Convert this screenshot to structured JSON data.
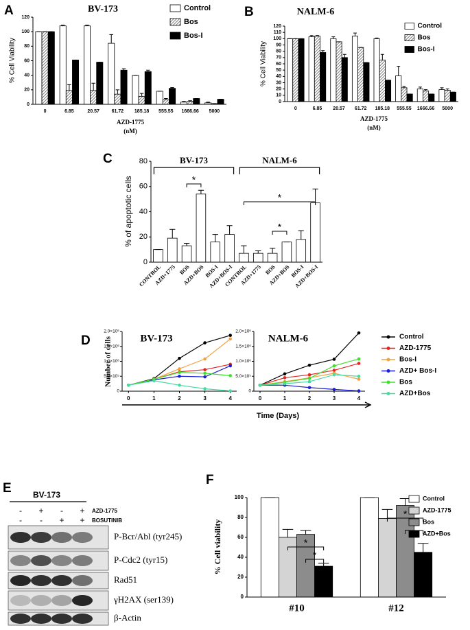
{
  "chart_data": [
    {
      "panel": "A",
      "type": "bar",
      "title": "BV-173",
      "y_label": "% Cell Viability",
      "x_label": "AZD-1775",
      "x_unit": "(nM)",
      "categories": [
        "0",
        "6.85",
        "20.57",
        "61.72",
        "185.18",
        "555.55",
        "1666.66",
        "5000"
      ],
      "series": [
        {
          "name": "Control",
          "color": "#ffffff",
          "values": [
            100,
            108,
            108,
            84,
            40,
            18,
            3,
            2
          ],
          "errors": [
            0,
            1,
            1,
            12,
            0,
            0,
            1,
            1
          ]
        },
        {
          "name": "Bos",
          "color": "#444444",
          "pattern": "hatch",
          "values": [
            100,
            19,
            19,
            14,
            11,
            6,
            4,
            1
          ],
          "errors": [
            0,
            8,
            10,
            6,
            4,
            2,
            1,
            0
          ]
        },
        {
          "name": "Bos-I",
          "color": "#000000",
          "values": [
            100,
            61,
            58,
            47,
            45,
            22,
            8,
            7
          ],
          "errors": [
            0,
            0,
            0,
            2,
            2,
            1,
            0,
            0
          ]
        }
      ],
      "ylim": [
        0,
        120
      ],
      "yticks": [
        0,
        20,
        40,
        60,
        80,
        100,
        120
      ]
    },
    {
      "panel": "B",
      "type": "bar",
      "title": "NALM-6",
      "y_label": "% Cell Viability",
      "x_label": "AZD-1775",
      "x_unit": "(nM)",
      "categories": [
        "0",
        "6.85",
        "20.57",
        "61.72",
        "185.18",
        "555.55",
        "1666.66",
        "5000"
      ],
      "series": [
        {
          "name": "Control",
          "color": "#ffffff",
          "values": [
            100,
            103,
            100,
            104,
            100,
            41,
            20,
            19
          ],
          "errors": [
            0,
            2,
            3,
            5,
            1,
            15,
            3,
            3
          ]
        },
        {
          "name": "Bos",
          "color": "#444444",
          "pattern": "hatch",
          "values": [
            100,
            104,
            95,
            86,
            66,
            22,
            17,
            18
          ],
          "errors": [
            0,
            1,
            0,
            0,
            9,
            2,
            2,
            2
          ]
        },
        {
          "name": "Bos-I",
          "color": "#000000",
          "values": [
            100,
            78,
            70,
            62,
            34,
            12,
            12,
            15
          ],
          "errors": [
            0,
            3,
            5,
            0,
            0,
            0,
            0,
            0
          ]
        }
      ],
      "ylim": [
        0,
        120
      ],
      "yticks": [
        0,
        10,
        20,
        30,
        40,
        50,
        60,
        70,
        80,
        90,
        100,
        110,
        120
      ]
    },
    {
      "panel": "C",
      "type": "bar",
      "y_label": "% of apoptotic cells",
      "groups": [
        "BV-173",
        "NALM-6"
      ],
      "categories": [
        "CONTROL",
        "AZD+1775",
        "BOS",
        "AZD+BOS",
        "BOS-I",
        "AZD+BOS-I",
        "CONTROL",
        "AZD+1775",
        "BOS",
        "AZD+BOS",
        "BOS-I",
        "AZD+BOS-I"
      ],
      "values": [
        10,
        19,
        13,
        54,
        16,
        22,
        7,
        7,
        7,
        16,
        18,
        47
      ],
      "errors": [
        0,
        7,
        2,
        3,
        6,
        7,
        6,
        2,
        4,
        0,
        7,
        11
      ],
      "color": "#ffffff",
      "annotations": [
        "*",
        "*",
        "*"
      ],
      "ylim": [
        0,
        80
      ],
      "yticks": [
        0,
        20,
        40,
        60,
        80
      ]
    },
    {
      "panel": "D",
      "type": "line",
      "y_label": "Number of cells",
      "x_label": "Time (Days)",
      "x": [
        0,
        1,
        2,
        3,
        4
      ],
      "xlim": [
        -0.25,
        4.25
      ],
      "xticks": [
        0,
        1,
        2,
        3,
        4
      ],
      "ylim": [
        0,
        2000000
      ],
      "yticks": [
        0,
        {
          "value": 500000,
          "label": "5.0×10⁵"
        },
        {
          "value": 1000000,
          "label": "1.0×10⁶"
        },
        {
          "value": 1500000,
          "label": "1.5×10⁶"
        },
        {
          "value": 2000000,
          "label": "2.0×10⁶"
        }
      ],
      "series": [
        {
          "name": "Control",
          "color": "#000000"
        },
        {
          "name": "AZD-1775",
          "color": "#e8231f"
        },
        {
          "name": "Bos-I",
          "color": "#f5a040"
        },
        {
          "name": "AZD+ Bos-I",
          "color": "#1b1fd6"
        },
        {
          "name": "Bos",
          "color": "#3ce02a"
        },
        {
          "name": "AZD+Bos",
          "color": "#45dba0"
        }
      ],
      "subplots": [
        {
          "title": "BV-173",
          "values": [
            [
              200000,
              420000,
              1100000,
              1620000,
              1870000
            ],
            [
              200000,
              400000,
              650000,
              720000,
              900000
            ],
            [
              200000,
              400000,
              750000,
              1080000,
              1750000
            ],
            [
              200000,
              380000,
              500000,
              480000,
              850000
            ],
            [
              200000,
              400000,
              630000,
              600000,
              520000
            ],
            [
              200000,
              350000,
              200000,
              80000,
              10000
            ]
          ]
        },
        {
          "title": "NALM-6",
          "values": [
            [
              200000,
              580000,
              870000,
              1070000,
              1950000
            ],
            [
              200000,
              450000,
              550000,
              700000,
              930000
            ],
            [
              200000,
              320000,
              450000,
              600000,
              400000
            ],
            [
              200000,
              200000,
              120000,
              60000,
              10000
            ],
            [
              200000,
              300000,
              430000,
              850000,
              1080000
            ],
            [
              200000,
              250000,
              320000,
              550000,
              500000
            ]
          ]
        }
      ]
    },
    {
      "panel": "F",
      "type": "bar",
      "y_label": "% Cell viability",
      "categories": [
        "#10",
        "#12"
      ],
      "series": [
        {
          "name": "Control",
          "color": "#ffffff",
          "values": [
            100,
            100
          ],
          "errors": [
            0,
            0
          ]
        },
        {
          "name": "AZD-1775",
          "color": "#d4d4d4",
          "values": [
            60,
            79
          ],
          "errors": [
            8,
            9
          ]
        },
        {
          "name": "Bos",
          "color": "#8c8c8c",
          "values": [
            63,
            92
          ],
          "errors": [
            4,
            7
          ]
        },
        {
          "name": "AZD+Bos",
          "color": "#000000",
          "values": [
            31,
            45
          ],
          "errors": [
            3,
            9
          ]
        }
      ],
      "annotations": [
        "*",
        "*",
        "*",
        "*"
      ],
      "ylim": [
        0,
        100
      ],
      "yticks": [
        0,
        20,
        40,
        60,
        80,
        100
      ]
    }
  ],
  "blot": {
    "panel": "E",
    "title": "BV-173",
    "treatments": [
      {
        "name": "AZD-1775",
        "signs": [
          "-",
          "+",
          "-",
          "+"
        ]
      },
      {
        "name": "BOSUTINIB",
        "signs": [
          "-",
          "-",
          "+",
          "+"
        ]
      }
    ],
    "bands": [
      "P-Bcr/Abl (tyr245)",
      "P-Cdc2 (tyr15)",
      "Rad51",
      "γH2AX (ser139)",
      "β-Actin"
    ]
  }
}
